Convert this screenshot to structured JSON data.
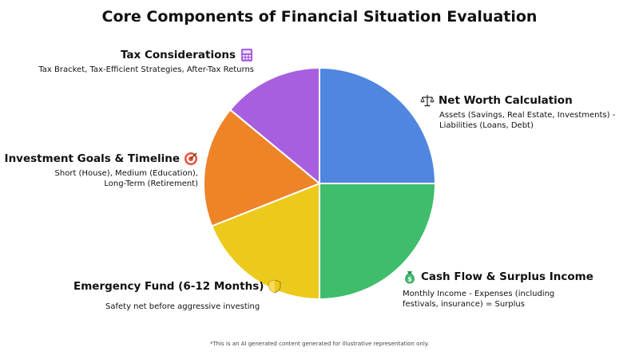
{
  "title": "Core Components of Financial Situation Evaluation",
  "footnote": "*This is an AI generated content generated for illustrative representation only.",
  "chart_data": {
    "type": "pie",
    "title": "Core Components of Financial Situation Evaluation",
    "slices": [
      {
        "name": "Net Worth Calculation",
        "value": 25,
        "color": "#4f86e0",
        "icon": "balance-scale-icon",
        "description": [
          "Assets (Savings, Real Estate, Investments) -",
          "Liabilities (Loans, Debt)"
        ]
      },
      {
        "name": "Cash Flow & Surplus Income",
        "value": 25,
        "color": "#3fbd6c",
        "icon": "money-bag-icon",
        "description": [
          "Monthly Income - Expenses (including",
          "festivals, insurance) = Surplus"
        ]
      },
      {
        "name": "Emergency Fund (6-12 Months)",
        "value": 19,
        "color": "#ecca1c",
        "icon": "shield-icon",
        "description": [
          "Safety net before aggressive investing"
        ]
      },
      {
        "name": "Investment Goals & Timeline",
        "value": 17,
        "color": "#ed8428",
        "icon": "target-icon",
        "description": [
          "Short (House), Medium (Education),",
          "Long-Term (Retirement)"
        ]
      },
      {
        "name": "Tax Considerations",
        "value": 14,
        "color": "#a75fe0",
        "icon": "calculator-icon",
        "description": [
          "Tax Bracket, Tax-Efficient Strategies, After-Tax Returns"
        ]
      }
    ]
  }
}
